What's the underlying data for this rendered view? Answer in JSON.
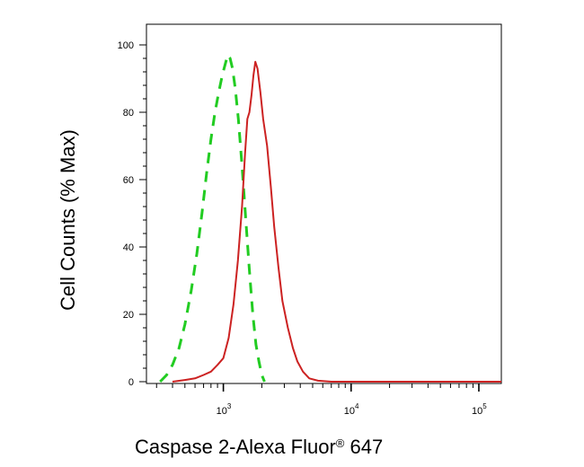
{
  "chart_data": {
    "type": "line",
    "title": "",
    "xlabel": "Caspase 2-Alexa Fluor",
    "xlabel_mark": "®",
    "xlabel_suffix": " 647",
    "ylabel": "Cell Counts (% Max)",
    "x_scale": "log",
    "xlim": [
      250,
      150000
    ],
    "ylim": [
      0,
      100
    ],
    "grid": false,
    "legend": "none",
    "y_ticks": [
      0,
      20,
      40,
      60,
      80,
      100
    ],
    "y_tick_labels": [
      "0",
      "20",
      "40",
      "60",
      "80",
      "100"
    ],
    "x_ticks": [
      1000,
      10000,
      100000
    ],
    "x_tick_bases": [
      "10",
      "10",
      "10"
    ],
    "x_tick_exps": [
      "3",
      "4",
      "5"
    ],
    "series": [
      {
        "color": "#22cc22",
        "dash": "dashed",
        "points": [
          [
            320,
            0
          ],
          [
            360,
            2
          ],
          [
            400,
            5
          ],
          [
            450,
            10
          ],
          [
            500,
            17
          ],
          [
            560,
            27
          ],
          [
            620,
            38
          ],
          [
            680,
            50
          ],
          [
            740,
            62
          ],
          [
            800,
            72
          ],
          [
            860,
            80
          ],
          [
            920,
            86
          ],
          [
            980,
            91
          ],
          [
            1030,
            94
          ],
          [
            1080,
            97
          ],
          [
            1130,
            96
          ],
          [
            1180,
            93
          ],
          [
            1240,
            87
          ],
          [
            1310,
            78
          ],
          [
            1400,
            64
          ],
          [
            1500,
            48
          ],
          [
            1600,
            33
          ],
          [
            1700,
            20
          ],
          [
            1800,
            11
          ],
          [
            1900,
            6
          ],
          [
            2000,
            2
          ],
          [
            2100,
            0
          ]
        ]
      },
      {
        "color": "#cc2222",
        "dash": "solid",
        "points": [
          [
            400,
            0
          ],
          [
            500,
            0.5
          ],
          [
            600,
            1
          ],
          [
            700,
            2
          ],
          [
            800,
            3
          ],
          [
            900,
            5
          ],
          [
            1000,
            7
          ],
          [
            1100,
            13
          ],
          [
            1200,
            23
          ],
          [
            1300,
            36
          ],
          [
            1400,
            52
          ],
          [
            1480,
            68
          ],
          [
            1540,
            78
          ],
          [
            1600,
            80
          ],
          [
            1660,
            85
          ],
          [
            1720,
            91
          ],
          [
            1780,
            95
          ],
          [
            1850,
            93
          ],
          [
            1950,
            86
          ],
          [
            2050,
            78
          ],
          [
            2200,
            70
          ],
          [
            2350,
            58
          ],
          [
            2500,
            46
          ],
          [
            2700,
            34
          ],
          [
            2900,
            24
          ],
          [
            3200,
            16
          ],
          [
            3500,
            10
          ],
          [
            3800,
            6
          ],
          [
            4200,
            3
          ],
          [
            4700,
            1
          ],
          [
            5500,
            0.3
          ],
          [
            7000,
            0
          ],
          [
            150000,
            0
          ]
        ]
      }
    ]
  }
}
